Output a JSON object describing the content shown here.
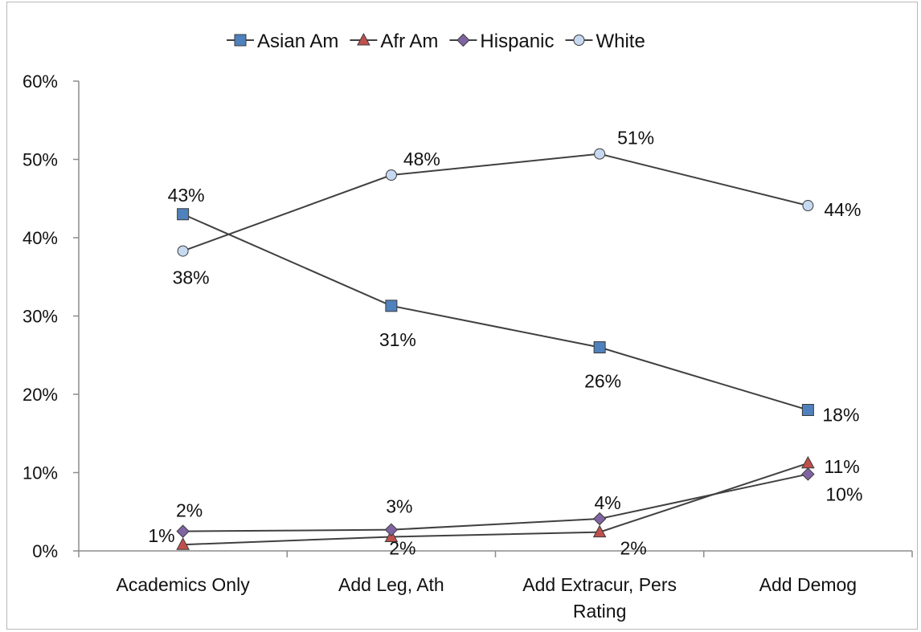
{
  "chart_data": {
    "type": "line",
    "title": "",
    "xlabel": "",
    "ylabel": "",
    "categories": [
      [
        "Academics Only"
      ],
      [
        "Add Leg, Ath"
      ],
      [
        "Add Extracur, Pers",
        "Rating"
      ],
      [
        "Add Demog"
      ]
    ],
    "ylim": [
      0,
      60
    ],
    "yticks": [
      0,
      10,
      20,
      30,
      40,
      50,
      60
    ],
    "ytick_labels": [
      "0%",
      "10%",
      "20%",
      "30%",
      "40%",
      "50%",
      "60%"
    ],
    "grid": false,
    "legend_position": "top",
    "series": [
      {
        "name": "Asian Am",
        "marker": "square",
        "color": "#4f81bd",
        "values": [
          43,
          31.3,
          26,
          18
        ],
        "labels": [
          "43%",
          "31%",
          "26%",
          "18%"
        ]
      },
      {
        "name": "Afr Am",
        "marker": "triangle",
        "color": "#c0504d",
        "values": [
          0.8,
          1.8,
          2.4,
          11.2
        ],
        "labels": [
          "1%",
          "2%",
          "2%",
          "11%"
        ]
      },
      {
        "name": "Hispanic",
        "marker": "diamond",
        "color": "#8064a2",
        "values": [
          2.5,
          2.7,
          4.1,
          9.8
        ],
        "labels": [
          "2%",
          "3%",
          "4%",
          "10%"
        ]
      },
      {
        "name": "White",
        "marker": "circle",
        "color": "#c6d9f1",
        "values": [
          38.3,
          48,
          50.7,
          44.1
        ],
        "labels": [
          "38%",
          "48%",
          "51%",
          "44%"
        ]
      }
    ],
    "line_color": "#404040"
  }
}
